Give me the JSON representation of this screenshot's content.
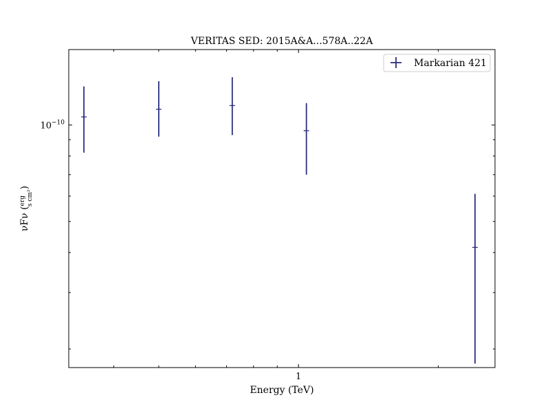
{
  "chart_data": {
    "type": "scatter",
    "title": "VERITAS SED: 2015A&A...578A..22A",
    "xlabel": "Energy (TeV)",
    "ylabel": "νFν (erg / (s cm²))",
    "x_scale": "log",
    "y_scale": "log",
    "xlim": [
      0.32,
      2.65
    ],
    "ylim": [
      1.75e-11,
      1.72e-10
    ],
    "x_ticks": [
      {
        "value": 1,
        "label": "1"
      }
    ],
    "y_ticks": [
      {
        "value": 1e-10,
        "label": "10",
        "exponent": "−10"
      }
    ],
    "legend_position": "top-right",
    "grid": false,
    "series": [
      {
        "name": "Markarian 421",
        "color": "#2b2f7e",
        "points": [
          {
            "x": 0.345,
            "y": 1.06e-10,
            "y_low": 8.2e-11,
            "y_high": 1.32e-10
          },
          {
            "x": 0.5,
            "y": 1.12e-10,
            "y_low": 9.2e-11,
            "y_high": 1.37e-10
          },
          {
            "x": 0.72,
            "y": 1.15e-10,
            "y_low": 9.3e-11,
            "y_high": 1.41e-10
          },
          {
            "x": 1.04,
            "y": 9.6e-11,
            "y_low": 7e-11,
            "y_high": 1.17e-10
          },
          {
            "x": 2.4,
            "y": 4.15e-11,
            "y_low": 1.8e-11,
            "y_high": 6.1e-11
          }
        ]
      }
    ]
  }
}
